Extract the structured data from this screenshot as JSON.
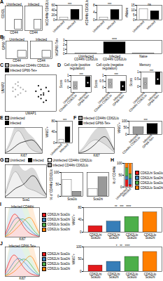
{
  "chart_data": [
    {
      "type": "flow",
      "title": "A",
      "xlabel": "CD44",
      "ylabel": "CD62L",
      "annotations": [
        "Uninfected",
        "Infected"
      ]
    },
    {
      "type": "bar",
      "categories": [
        "Uninfected",
        "Infected"
      ],
      "values": [
        9,
        42
      ],
      "colors": [
        "#ffffff",
        "#000000"
      ],
      "ylabel": "%CD44hi CD62Llo",
      "ylim": [
        0,
        60
      ],
      "yticks": [
        0,
        20,
        40,
        60
      ],
      "annotations": [
        "***"
      ]
    },
    {
      "type": "bar",
      "categories": [
        "Uninfected",
        "Infected"
      ],
      "values": [
        1.2,
        5.5
      ],
      "colors": [
        "#ffffff",
        "#000000"
      ],
      "ylabel": "#CD44hi CD62Llo",
      "ylim": [
        0,
        8
      ],
      "yticks": [
        0,
        4,
        8
      ],
      "annotations": [
        "***"
      ]
    },
    {
      "type": "bar",
      "categories": [
        "Uninfected",
        "Infected"
      ],
      "values": [
        11,
        9
      ],
      "colors": [
        "#ffffff",
        "#000000"
      ],
      "ylabel": "#Naive",
      "ylim": [
        0,
        15
      ],
      "yticks": [
        0,
        5,
        10,
        15
      ],
      "annotations": [
        "ns"
      ]
    },
    {
      "type": "flow",
      "title": "B",
      "xlabel": "CD44",
      "ylabel": "GP66-Tet",
      "annotations": [
        "Uninfected",
        "Infected"
      ]
    },
    {
      "type": "bar",
      "categories": [
        "Uninfected\nCD44hi CD62Llo",
        "Infected\nCD44hi CD62Llo",
        "Naive"
      ],
      "values": [
        0.05,
        2.6,
        0.03
      ],
      "colors": [
        "#ffffff",
        "#000000",
        "#888888"
      ],
      "ylabel": "%GP66-Tet+",
      "ylim": [
        0,
        3
      ],
      "yticks": [
        0,
        1,
        2,
        3
      ],
      "annotations": [
        "****"
      ]
    },
    {
      "type": "scatter",
      "title": "C",
      "xlabel": "UMAP1",
      "ylabel": "UMAP2",
      "xlim": [
        -10,
        10
      ],
      "ylim": [
        -10,
        10
      ],
      "tick_labels": false,
      "legend": "top",
      "series": [
        {
          "name": "Uninfected CD44hi CD62Llo",
          "color": "#aaaaaa",
          "x": [
            -6,
            -5,
            -7,
            -4,
            -5,
            -6,
            -3,
            -4,
            -7,
            -5,
            -2,
            -6
          ],
          "y": [
            2,
            4,
            1,
            3,
            -1,
            5,
            2,
            0,
            3,
            6,
            1,
            -2
          ]
        },
        {
          "name": "Infected GP66-Tet+",
          "color": "#000000",
          "x": [
            3,
            5,
            4,
            6,
            2,
            5,
            7,
            4,
            3,
            6,
            5,
            4
          ],
          "y": [
            -2,
            0,
            2,
            -4,
            1,
            -1,
            1,
            -3,
            4,
            3,
            -5,
            -1
          ]
        }
      ]
    },
    {
      "type": "range",
      "title": "D",
      "subtitle": "Cell cycle (positive regulation)",
      "categories": [
        "Uninfected\nCD44hi CD62Llo",
        "Infected\nGP66-Tet+"
      ],
      "values": [
        0.1,
        0.4
      ],
      "low": [
        -0.2,
        0
      ],
      "high": [
        0.5,
        0.9
      ],
      "colors": [
        "#aaaaaa",
        "#000000"
      ],
      "ylabel": "Score",
      "ylim": [
        -0.4,
        1
      ],
      "yticks": [
        0,
        0.5,
        1
      ],
      "annotations": [
        "***"
      ]
    },
    {
      "type": "range",
      "subtitle": "Cell cycle (negative regulation)",
      "categories": [
        "Uninfected\nCD44hi CD62Llo",
        "Infected\nGP66-Tet+"
      ],
      "values": [
        0.3,
        0.1
      ],
      "low": [
        -0.1,
        -0.3
      ],
      "high": [
        0.7,
        0.5
      ],
      "colors": [
        "#aaaaaa",
        "#000000"
      ],
      "ylabel": "Score",
      "ylim": [
        -0.4,
        1
      ],
      "yticks": [
        0,
        0.5,
        1
      ],
      "annotations": [
        "***"
      ]
    },
    {
      "type": "range",
      "subtitle": "Memory",
      "categories": [
        "Uninfected\nCD44hi CD62Llo",
        "Infected\nGP66-Tet+"
      ],
      "values": [
        0.2,
        0.5
      ],
      "low": [
        -0.2,
        0.1
      ],
      "high": [
        0.6,
        1
      ],
      "colors": [
        "#aaaaaa",
        "#000000"
      ],
      "ylabel": "Score",
      "ylim": [
        -0.4,
        1
      ],
      "yticks": [
        0,
        0.5,
        1
      ],
      "annotations": [
        "***"
      ]
    },
    {
      "type": "line",
      "title": "E",
      "xlabel": "Ki67",
      "xlim": [
        0,
        8
      ],
      "ylim": [
        0,
        100
      ],
      "tick_labels": false,
      "legend": "top",
      "x": [
        0,
        1,
        2,
        3,
        4,
        5,
        6,
        7,
        8
      ],
      "series": [
        {
          "name": "Uninfected",
          "color": "#999999",
          "values": [
            5,
            30,
            80,
            95,
            60,
            25,
            10,
            5,
            2
          ]
        },
        {
          "name": "Infected",
          "color": "#000000",
          "values": [
            3,
            10,
            25,
            40,
            45,
            50,
            55,
            35,
            10
          ]
        }
      ]
    },
    {
      "type": "bar",
      "categories": [
        "Uninfected",
        "Infected"
      ],
      "values": [
        12,
        58
      ],
      "colors": [
        "#ffffff",
        "#000000"
      ],
      "ylabel": "%Ki67+",
      "ylim": [
        0,
        80
      ],
      "yticks": [
        0,
        40,
        80
      ],
      "annotations": [
        "***"
      ]
    },
    {
      "type": "line",
      "title": "F",
      "xlabel": "Ki67",
      "xlim": [
        0,
        8
      ],
      "ylim": [
        0,
        100
      ],
      "tick_labels": false,
      "legend": "top",
      "x": [
        0,
        1,
        2,
        3,
        4,
        5,
        6,
        7,
        8
      ],
      "series": [
        {
          "name": "Infected CD44hi CD62Llo",
          "color": "#999999",
          "values": [
            4,
            15,
            35,
            50,
            55,
            45,
            35,
            20,
            5
          ]
        },
        {
          "name": "Infected GP66-Tet+",
          "color": "#000000",
          "values": [
            2,
            5,
            12,
            25,
            40,
            60,
            70,
            45,
            12
          ]
        }
      ]
    },
    {
      "type": "bar",
      "categories": [
        "Infected\nCD44hi CD62Llo",
        "Infected\nGP66-Tet+"
      ],
      "values": [
        55,
        80
      ],
      "colors": [
        "#999999",
        "#000000"
      ],
      "ylabel": "%Ki67+",
      "ylim": [
        0,
        100
      ],
      "yticks": [
        0,
        50,
        100
      ],
      "annotations": [
        "***"
      ]
    },
    {
      "type": "line",
      "title": "G",
      "xlabel": "Sca1",
      "xlim": [
        0,
        8
      ],
      "ylim": [
        0,
        100
      ],
      "tick_labels": false,
      "legend": "top",
      "x": [
        0,
        1,
        2,
        3,
        4,
        5,
        6,
        7,
        8
      ],
      "series": [
        {
          "name": "Uninfected",
          "color": "#999999",
          "values": [
            10,
            60,
            90,
            55,
            30,
            25,
            20,
            10,
            3
          ]
        },
        {
          "name": "Infected",
          "color": "#000000",
          "values": [
            3,
            15,
            30,
            35,
            45,
            70,
            65,
            30,
            8
          ]
        }
      ]
    },
    {
      "type": "bar",
      "categories": [
        "Sca1lo",
        "Sca1hi"
      ],
      "legend": "top",
      "ylabel": "% of CD44hi CD62Llo",
      "ylim": [
        0,
        100
      ],
      "yticks": [
        0,
        50,
        100
      ],
      "series": [
        {
          "name": "Uninfected CD44hi CD62Llo",
          "color": "#ffffff",
          "values": [
            70,
            30
          ]
        },
        {
          "name": "Infected CD44hi CD62Llo",
          "color": "#999999",
          "values": [
            20,
            80
          ]
        }
      ]
    },
    {
      "type": "bar",
      "title": "H",
      "stacked": true,
      "legend": "right",
      "categories": [
        "Uninfected",
        "Infected"
      ],
      "ylabel": "% of CD44hi",
      "ylim": [
        0,
        100
      ],
      "yticks": [
        0,
        50,
        100
      ],
      "series": [
        {
          "name": "CD62Lhi Sca1lo",
          "color": "#e41a1c",
          "values": [
            30,
            10
          ]
        },
        {
          "name": "CD62Lhi Sca1hi",
          "color": "#377eb8",
          "values": [
            15,
            25
          ]
        },
        {
          "name": "CD62Llo Sca1lo",
          "color": "#4daf4a",
          "values": [
            35,
            20
          ]
        },
        {
          "name": "CD62Llo Sca1hi",
          "color": "#ff7f00",
          "values": [
            20,
            45
          ]
        }
      ]
    },
    {
      "type": "line",
      "title": "I",
      "xlabel": "Ki67",
      "xlim": [
        0,
        8
      ],
      "ylim": [
        0,
        100
      ],
      "tick_labels": false,
      "legend": "right",
      "annotations": [
        "Infected CD44hi"
      ],
      "x": [
        0,
        1,
        2,
        3,
        4,
        5,
        6,
        7,
        8
      ],
      "series": [
        {
          "name": "CD62Lhi Sca1lo",
          "color": "#e41a1c",
          "values": [
            10,
            50,
            85,
            70,
            40,
            20,
            10,
            5,
            2
          ]
        },
        {
          "name": "CD62Lhi Sca1hi",
          "color": "#377eb8",
          "values": [
            5,
            30,
            60,
            70,
            55,
            35,
            20,
            8,
            3
          ]
        },
        {
          "name": "CD62Llo Sca1lo",
          "color": "#4daf4a",
          "values": [
            3,
            15,
            35,
            55,
            65,
            55,
            35,
            15,
            5
          ]
        },
        {
          "name": "CD62Llo Sca1hi",
          "color": "#ff7f00",
          "values": [
            2,
            8,
            20,
            35,
            50,
            65,
            70,
            40,
            10
          ]
        }
      ]
    },
    {
      "type": "bar",
      "categories": [
        "CD62Lhi\nSca1lo",
        "CD62Lhi\nSca1hi",
        "CD62Llo\nSca1lo",
        "CD62Llo\nSca1hi"
      ],
      "values": [
        20,
        35,
        50,
        65
      ],
      "colors": [
        "#e41a1c",
        "#377eb8",
        "#4daf4a",
        "#ff7f00"
      ],
      "ylabel": "%Ki67+",
      "ylim": [
        0,
        80
      ],
      "yticks": [
        0,
        40,
        80
      ],
      "annotations": [
        "**",
        "***",
        "****"
      ]
    },
    {
      "type": "line",
      "title": "J",
      "xlabel": "Ki67",
      "xlim": [
        0,
        8
      ],
      "ylim": [
        0,
        100
      ],
      "tick_labels": false,
      "legend": "right",
      "annotations": [
        "Infected GP66-Tet+"
      ],
      "x": [
        0,
        1,
        2,
        3,
        4,
        5,
        6,
        7,
        8
      ],
      "series": [
        {
          "name": "CD62Lhi Sca1lo",
          "color": "#e41a1c",
          "values": [
            12,
            55,
            80,
            60,
            35,
            18,
            8,
            4,
            2
          ]
        },
        {
          "name": "CD62Lhi Sca1hi",
          "color": "#377eb8",
          "values": [
            6,
            25,
            50,
            65,
            55,
            40,
            22,
            10,
            3
          ]
        },
        {
          "name": "CD62Llo Sca1lo",
          "color": "#4daf4a",
          "values": [
            3,
            12,
            30,
            50,
            60,
            58,
            40,
            18,
            5
          ]
        },
        {
          "name": "CD62Llo Sca1hi",
          "color": "#ff7f00",
          "values": [
            2,
            6,
            15,
            28,
            45,
            62,
            75,
            48,
            12
          ]
        }
      ]
    },
    {
      "type": "bar",
      "categories": [
        "CD62Lhi\nSca1lo",
        "CD62Lhi\nSca1hi",
        "CD62Llo\nSca1lo",
        "CD62Llo\nSca1hi"
      ],
      "values": [
        25,
        40,
        60,
        80
      ],
      "colors": [
        "#e41a1c",
        "#377eb8",
        "#4daf4a",
        "#ff7f00"
      ],
      "ylabel": "%Ki67+",
      "ylim": [
        0,
        100
      ],
      "yticks": [
        0,
        50,
        100
      ],
      "annotations": [
        "*",
        "**",
        "****"
      ]
    }
  ]
}
